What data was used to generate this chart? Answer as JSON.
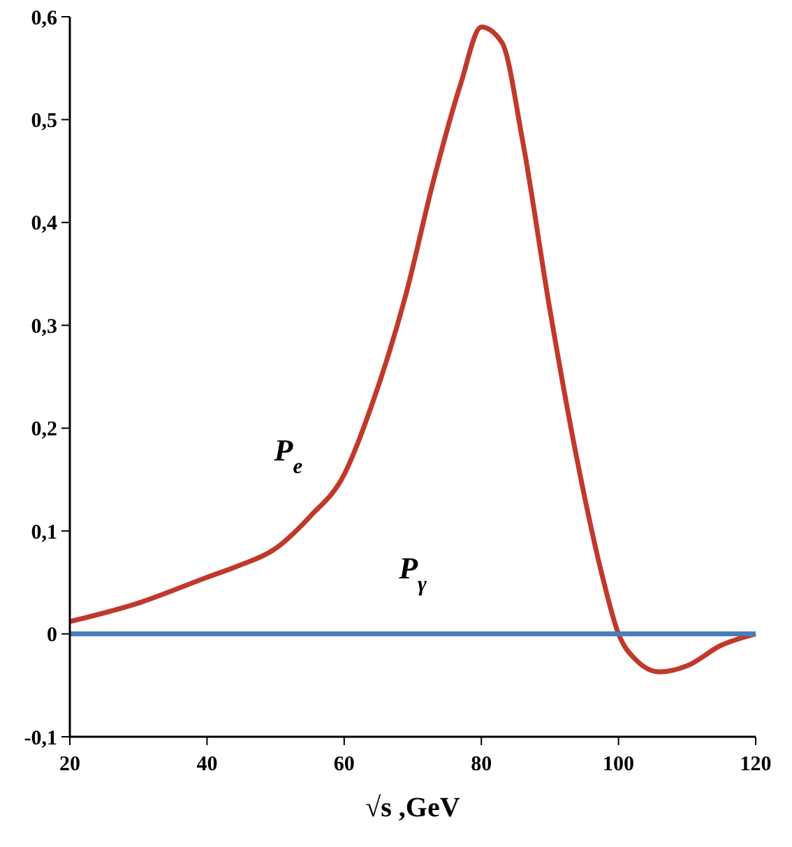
{
  "chart_data": {
    "type": "line",
    "xlabel": "√s ,GeV",
    "xlim": [
      20,
      120
    ],
    "xticks": [
      20,
      40,
      60,
      80,
      100,
      120
    ],
    "ylim": [
      -0.1,
      0.6
    ],
    "yticks": [
      {
        "value": -0.1,
        "label": "-0,1"
      },
      {
        "value": 0,
        "label": "0"
      },
      {
        "value": 0.1,
        "label": "0,1"
      },
      {
        "value": 0.2,
        "label": "0,2"
      },
      {
        "value": 0.3,
        "label": "0,3"
      },
      {
        "value": 0.4,
        "label": "0,4"
      },
      {
        "value": 0.5,
        "label": "0,5"
      },
      {
        "value": 0.6,
        "label": "0,6"
      }
    ],
    "grid": false,
    "legend": false,
    "marker": "none",
    "line_style": "solid",
    "series": [
      {
        "name": "P$_{e}$",
        "color": "#c0392b",
        "x": [
          20,
          30,
          40,
          44.5,
          50,
          55,
          60,
          64,
          69,
          73,
          77,
          80,
          83,
          86,
          90,
          94,
          97.5,
          100,
          102.5,
          106,
          110,
          115,
          120
        ],
        "values": [
          0.012,
          0.03,
          0.055,
          0.066,
          0.083,
          0.114,
          0.155,
          0.222,
          0.33,
          0.44,
          0.535,
          0.59,
          0.575,
          0.48,
          0.315,
          0.168,
          0.06,
          0,
          -0.025,
          -0.037,
          -0.031,
          -0.011,
          0
        ]
      },
      {
        "name": "P$_{γ}$",
        "color": "#4a7ebb",
        "x": [
          20,
          120
        ],
        "values": [
          0,
          0
        ]
      }
    ]
  }
}
